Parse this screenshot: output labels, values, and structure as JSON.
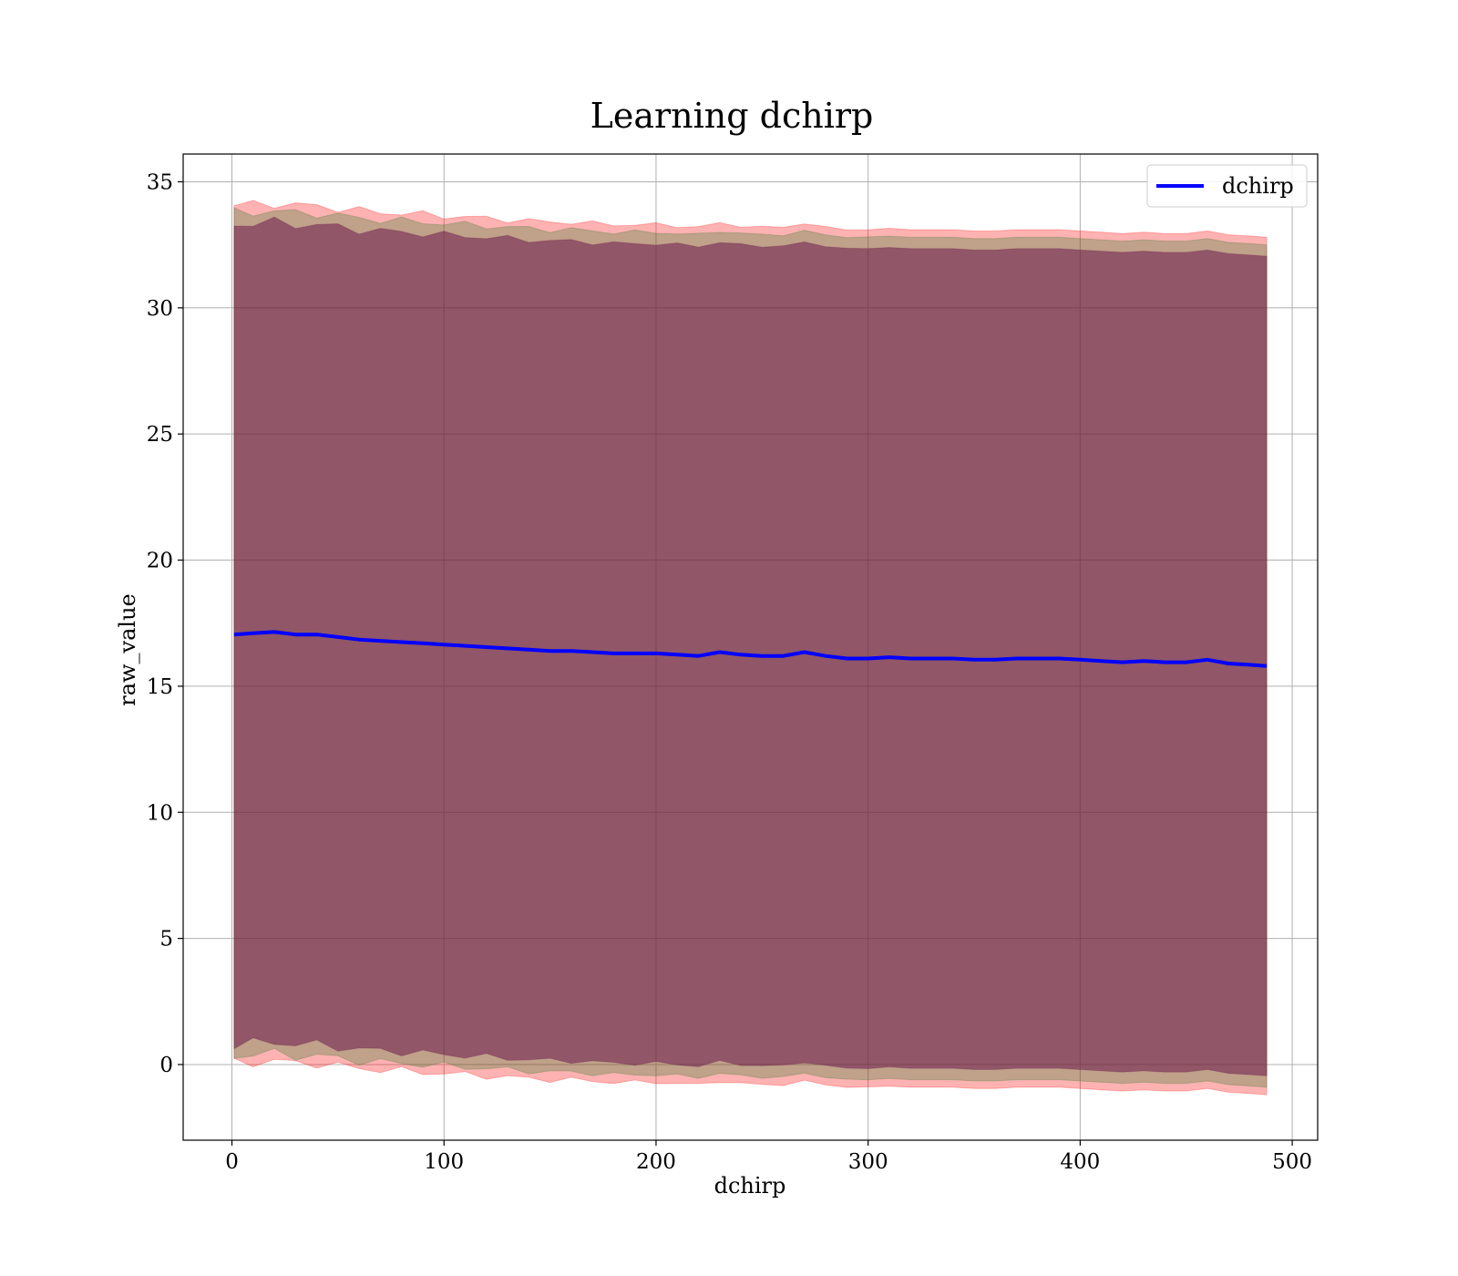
{
  "chart_data": {
    "type": "line",
    "title": "Learning dchirp",
    "xlabel": "dchirp",
    "ylabel": "raw_value",
    "xlim": [
      -23,
      512
    ],
    "ylim": [
      -3,
      36.1
    ],
    "xticks": [
      0,
      100,
      200,
      300,
      400,
      500
    ],
    "yticks": [
      0,
      5,
      10,
      15,
      20,
      25,
      30,
      35
    ],
    "xtick_labels": [
      "0",
      "100",
      "200",
      "300",
      "400",
      "500"
    ],
    "ytick_labels": [
      "0",
      "5",
      "10",
      "15",
      "20",
      "25",
      "30",
      "35"
    ],
    "grid": true,
    "legend": {
      "position": "top-right",
      "entries": [
        "dchirp"
      ]
    },
    "series": [
      {
        "name": "dchirp",
        "color": "#0000ff",
        "x": [
          1,
          10,
          20,
          30,
          40,
          50,
          60,
          70,
          80,
          90,
          100,
          110,
          120,
          130,
          140,
          150,
          160,
          170,
          180,
          190,
          200,
          210,
          220,
          230,
          240,
          250,
          260,
          270,
          280,
          290,
          300,
          310,
          320,
          330,
          340,
          350,
          360,
          370,
          380,
          390,
          400,
          410,
          420,
          430,
          440,
          450,
          460,
          470,
          480,
          488
        ],
        "y": [
          17.05,
          17.1,
          17.15,
          17.05,
          17.05,
          16.95,
          16.85,
          16.8,
          16.75,
          16.7,
          16.65,
          16.6,
          16.55,
          16.5,
          16.45,
          16.4,
          16.4,
          16.35,
          16.3,
          16.3,
          16.3,
          16.25,
          16.2,
          16.35,
          16.25,
          16.2,
          16.2,
          16.35,
          16.2,
          16.1,
          16.1,
          16.15,
          16.1,
          16.1,
          16.1,
          16.05,
          16.05,
          16.1,
          16.1,
          16.1,
          16.05,
          16.0,
          15.95,
          16.0,
          15.95,
          15.95,
          16.05,
          15.9,
          15.85,
          15.8
        ]
      }
    ],
    "bands": [
      {
        "color": "#ff0000",
        "opacity": 0.3,
        "half_width": 17.0
      },
      {
        "color": "#2f7a2f",
        "opacity": 0.3,
        "half_width": 16.7
      },
      {
        "color": "#6a1a4a",
        "opacity": 0.55,
        "half_width": 16.25
      }
    ]
  }
}
